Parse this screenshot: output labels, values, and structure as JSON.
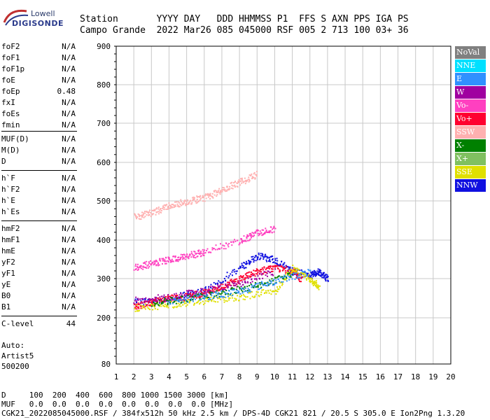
{
  "logo": {
    "line1": "Lowell",
    "line2": "DIGISONDE"
  },
  "header": {
    "line1": "Station       YYYY DAY   DDD HHMMSS P1  FFS S AXN PPS IGA PS",
    "line2": "Campo Grande  2022 Mar26 085 045000 RSF 005 2 713 100 03+ 36"
  },
  "params": [
    {
      "label": "foF2",
      "value": "N/A"
    },
    {
      "label": "foF1",
      "value": "N/A"
    },
    {
      "label": "foF1p",
      "value": "N/A"
    },
    {
      "label": "foE",
      "value": "N/A"
    },
    {
      "label": "foEp",
      "value": "0.48"
    },
    {
      "label": "fxI",
      "value": "N/A"
    },
    {
      "label": "foEs",
      "value": "N/A"
    },
    {
      "label": "fmin",
      "value": "N/A"
    },
    {
      "label": "MUF(D)",
      "value": "N/A"
    },
    {
      "label": "M(D)",
      "value": "N/A"
    },
    {
      "label": "D",
      "value": "N/A"
    },
    {
      "label": "h`F",
      "value": "N/A"
    },
    {
      "label": "h`F2",
      "value": "N/A"
    },
    {
      "label": "h`E",
      "value": "N/A"
    },
    {
      "label": "h`Es",
      "value": "N/A"
    },
    {
      "label": "hmF2",
      "value": "N/A"
    },
    {
      "label": "hmF1",
      "value": "N/A"
    },
    {
      "label": "hmE",
      "value": "N/A"
    },
    {
      "label": "yF2",
      "value": "N/A"
    },
    {
      "label": "yF1",
      "value": "N/A"
    },
    {
      "label": "yE",
      "value": "N/A"
    },
    {
      "label": "B0",
      "value": "N/A"
    },
    {
      "label": "B1",
      "value": "N/A"
    },
    {
      "label": "C-level",
      "value": "44"
    }
  ],
  "auto": {
    "line1": "Auto:",
    "line2": "Artist5",
    "line3": "500200"
  },
  "legend": [
    {
      "label": "NoVal",
      "color": "#808080"
    },
    {
      "label": "NNE",
      "color": "#00e0ff"
    },
    {
      "label": "E",
      "color": "#3090ff"
    },
    {
      "label": "W",
      "color": "#a000a0"
    },
    {
      "label": "Vo-",
      "color": "#ff40c0"
    },
    {
      "label": "Vo+",
      "color": "#ff0030"
    },
    {
      "label": "SSW",
      "color": "#ffb0b0"
    },
    {
      "label": "X-",
      "color": "#008000"
    },
    {
      "label": "X+",
      "color": "#80c060"
    },
    {
      "label": "SSE",
      "color": "#e0e000"
    },
    {
      "label": "NNW",
      "color": "#1010e0"
    }
  ],
  "footer": {
    "line1": "D     100  200  400  600  800 1000 1500 3000 [km]",
    "line2": "MUF   0.0  0.0  0.0  0.0  0.0  0.0  0.0  0.0 [MHz]",
    "line3": "CGK21_2022085045000.RSF / 384fx512h 50 kHz 2.5 km / DPS-4D CGK21 821 / 20.5 S 305.0 E Ion2Png 1.3.20"
  },
  "chart_data": {
    "type": "scatter",
    "xlim": [
      1,
      20
    ],
    "ylim": [
      80,
      900
    ],
    "x_ticks": [
      1,
      2,
      3,
      4,
      5,
      6,
      7,
      8,
      9,
      10,
      11,
      12,
      13,
      14,
      15,
      16,
      17,
      18,
      19,
      20
    ],
    "y_ticks": [
      80,
      200,
      300,
      400,
      500,
      600,
      700,
      800,
      900
    ],
    "grid": true,
    "legend_placement": "right",
    "x_unit": "MHz",
    "y_unit": "km",
    "series": [
      {
        "name": "NNW",
        "color": "#1010e0",
        "x": [
          2,
          4,
          6,
          8,
          9,
          10,
          11,
          12,
          12.5,
          13
        ],
        "y": [
          240,
          250,
          270,
          330,
          360,
          350,
          320,
          310,
          320,
          300
        ]
      },
      {
        "name": "Vo+",
        "color": "#ff0030",
        "x": [
          2,
          3,
          4,
          5,
          6,
          7,
          8,
          9,
          10,
          11,
          11.5
        ],
        "y": [
          230,
          240,
          250,
          255,
          265,
          280,
          300,
          320,
          330,
          320,
          300
        ]
      },
      {
        "name": "SSE",
        "color": "#e0e000",
        "x": [
          2,
          4,
          6,
          8,
          10,
          11,
          12,
          12.5
        ],
        "y": [
          225,
          235,
          245,
          255,
          270,
          330,
          300,
          280
        ]
      },
      {
        "name": "Vo-",
        "color": "#ff40c0",
        "x": [
          2,
          3,
          4,
          5,
          6,
          8,
          9,
          10
        ],
        "y": [
          330,
          340,
          350,
          360,
          370,
          400,
          420,
          430
        ]
      },
      {
        "name": "SSW",
        "color": "#ffb0b0",
        "x": [
          2,
          3,
          4,
          5,
          6,
          7,
          8,
          9
        ],
        "y": [
          460,
          470,
          490,
          500,
          510,
          530,
          550,
          570
        ]
      },
      {
        "name": "W",
        "color": "#a000a0",
        "x": [
          2,
          4,
          6,
          8,
          10
        ],
        "y": [
          245,
          255,
          270,
          290,
          320
        ]
      },
      {
        "name": "X-",
        "color": "#008000",
        "x": [
          3,
          5,
          7,
          9,
          11
        ],
        "y": [
          240,
          250,
          265,
          285,
          310
        ]
      },
      {
        "name": "E",
        "color": "#3090ff",
        "x": [
          4,
          6,
          8,
          10,
          12
        ],
        "y": [
          245,
          255,
          270,
          295,
          320
        ]
      }
    ]
  }
}
